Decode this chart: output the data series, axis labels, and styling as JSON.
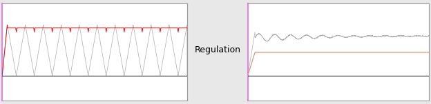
{
  "fig_width": 6.24,
  "fig_height": 1.51,
  "bg_color": "#e8e8e8",
  "panel_bg": "#ffffff",
  "border_color_left": "#dd88dd",
  "grid_color": "#cccccc",
  "label_text": "Regulation",
  "label_fontsize": 9,
  "panel1_red_color": "#cc2222",
  "panel1_gray_color": "#aaaaaa",
  "panel2_orange_color": "#dd9977",
  "panel2_gray_color": "#aaaaaa",
  "zero_line_color": "#444444",
  "spine_color": "#999999",
  "n_cycles": 10,
  "ylim_lo": -0.35,
  "ylim_hi": 1.0,
  "panel1_peak": 0.7,
  "panel1_zero": 0.0,
  "panel2_orange_level": 0.32,
  "panel2_gray_level": 0.55
}
